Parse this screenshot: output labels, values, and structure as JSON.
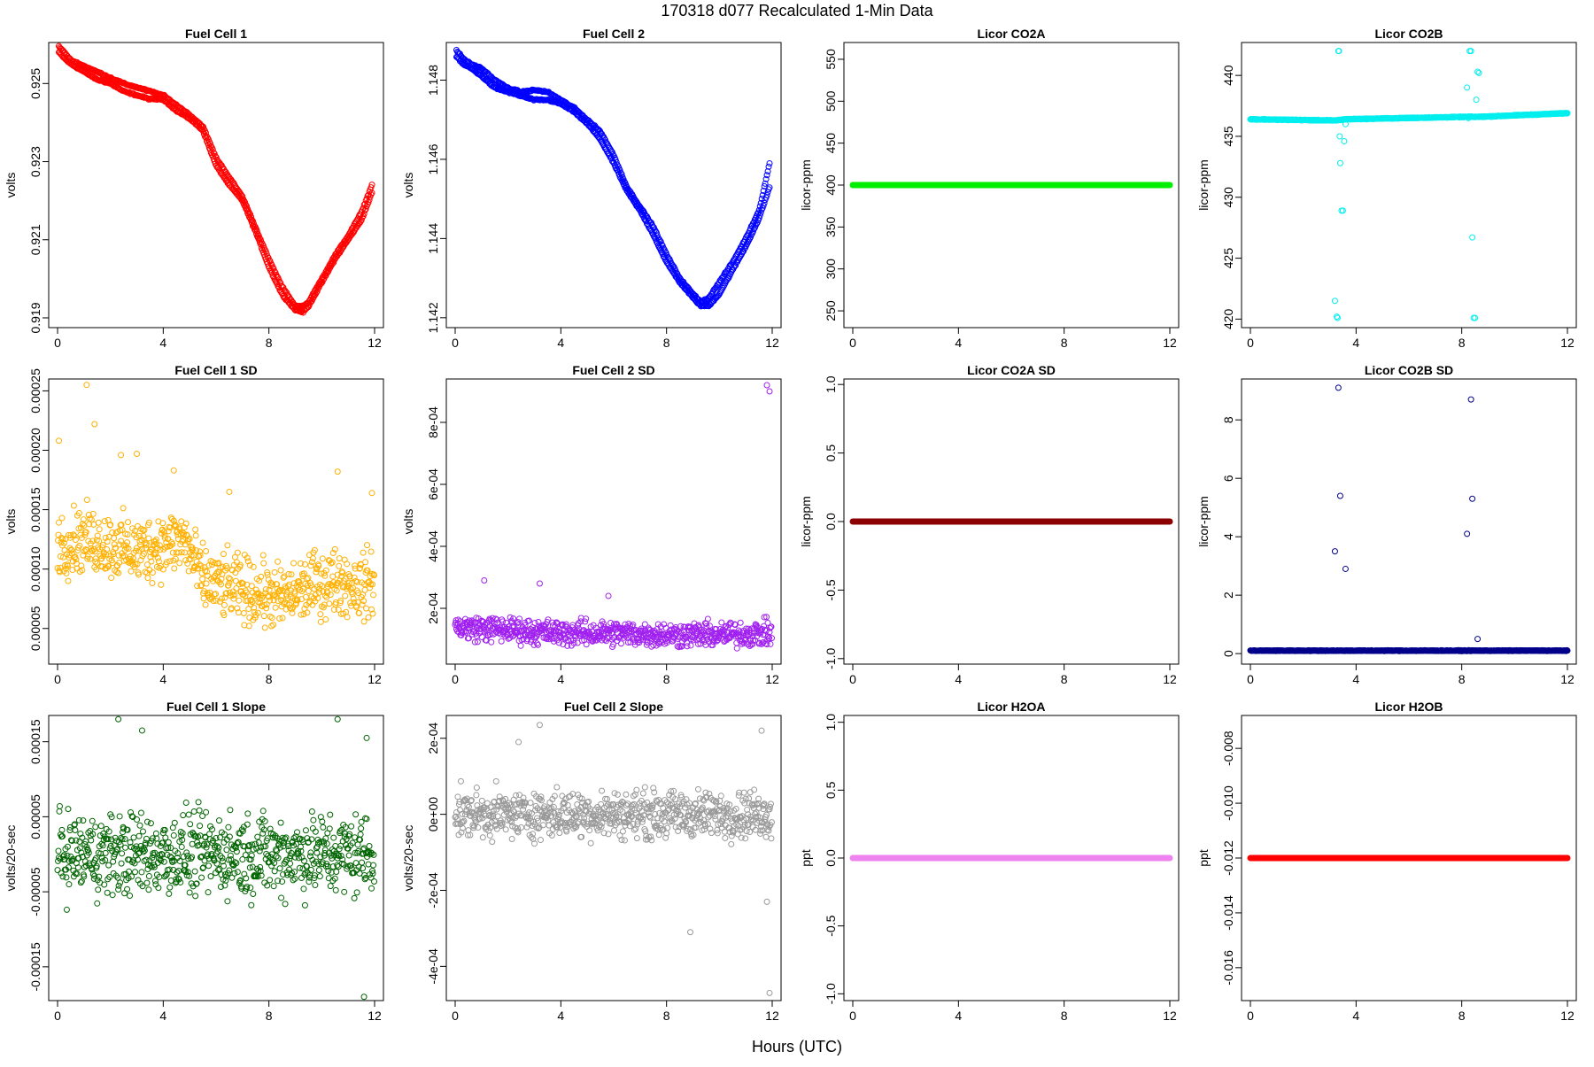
{
  "figure": {
    "title": "170318   d077   Recalculated 1-Min Data",
    "xlabel": "Hours (UTC)"
  },
  "chart_data": [
    {
      "type": "scatter",
      "title": "Fuel Cell 1",
      "ylabel": "volts",
      "xlim": [
        0,
        12
      ],
      "ylim": [
        0.91875,
        0.92605
      ],
      "xticks": [
        0,
        4,
        8,
        12
      ],
      "xtick_labels": [
        "0",
        "4",
        "8",
        "12"
      ],
      "yticks": [
        0.919,
        0.921,
        0.923,
        0.925
      ],
      "ytick_labels": [
        "0.919",
        "0.921",
        "0.923",
        "0.925"
      ],
      "color": "#ff0000",
      "series": [
        {
          "x": [
            0.05,
            0.25,
            0.5,
            1.0,
            1.5,
            2.0,
            2.5,
            3.0,
            3.5,
            4.0,
            4.5,
            5.0,
            5.5,
            6.0,
            6.5,
            7.0,
            7.5,
            8.0,
            8.5,
            9.0,
            9.3,
            9.5,
            10.0,
            10.5,
            11.0,
            11.5,
            11.9
          ],
          "y": [
            0.9258,
            0.92565,
            0.9255,
            0.9253,
            0.9251,
            0.925,
            0.9248,
            0.9247,
            0.9246,
            0.9246,
            0.9243,
            0.9241,
            0.9238,
            0.9229,
            0.9224,
            0.922,
            0.9212,
            0.9203,
            0.9196,
            0.9192,
            0.91915,
            0.9193,
            0.9199,
            0.9205,
            0.921,
            0.9215,
            0.9222
          ]
        },
        {
          "x": [
            0.05,
            0.25,
            0.5,
            1.0,
            1.5,
            2.0,
            2.5,
            3.0,
            3.5,
            4.0,
            4.5,
            5.0,
            5.5,
            6.0,
            6.5,
            7.0,
            7.5,
            8.0,
            8.5,
            9.0,
            9.3,
            9.5,
            10.0,
            10.5,
            11.0,
            11.5,
            11.9
          ],
          "y": [
            0.92595,
            0.9258,
            0.9256,
            0.92545,
            0.9253,
            0.92515,
            0.925,
            0.9249,
            0.9248,
            0.9247,
            0.92445,
            0.9242,
            0.9239,
            0.9231,
            0.9226,
            0.9221,
            0.9213,
            0.9205,
            0.9198,
            0.9193,
            0.9193,
            0.9194,
            0.92,
            0.9206,
            0.9211,
            0.9217,
            0.9224
          ]
        }
      ],
      "marker": "band"
    },
    {
      "type": "scatter",
      "title": "Fuel Cell 2",
      "ylabel": "volts",
      "xlim": [
        0,
        12
      ],
      "ylim": [
        1.14175,
        1.14895
      ],
      "xticks": [
        0,
        4,
        8,
        12
      ],
      "xtick_labels": [
        "0",
        "4",
        "8",
        "12"
      ],
      "yticks": [
        1.142,
        1.144,
        1.146,
        1.148
      ],
      "ytick_labels": [
        "1.142",
        "1.144",
        "1.146",
        "1.148"
      ],
      "color": "#0000ff",
      "series": [
        {
          "x": [
            0.05,
            0.3,
            0.6,
            1.0,
            1.5,
            2.0,
            2.5,
            3.0,
            3.5,
            4.0,
            4.5,
            5.0,
            5.5,
            6.0,
            6.5,
            7.0,
            7.5,
            8.0,
            8.5,
            9.0,
            9.3,
            9.6,
            10.0,
            10.5,
            11.0,
            11.5,
            11.9
          ],
          "y": [
            1.1486,
            1.1484,
            1.1483,
            1.1481,
            1.1478,
            1.1477,
            1.1476,
            1.1475,
            1.1475,
            1.1474,
            1.1472,
            1.1469,
            1.1465,
            1.1459,
            1.1452,
            1.1447,
            1.1441,
            1.1434,
            1.1429,
            1.1425,
            1.1423,
            1.1423,
            1.1426,
            1.1432,
            1.1438,
            1.1445,
            1.1453
          ]
        },
        {
          "x": [
            0.05,
            0.3,
            0.6,
            1.0,
            1.5,
            2.0,
            2.5,
            3.0,
            3.5,
            4.0,
            4.5,
            5.0,
            5.5,
            6.0,
            6.5,
            7.0,
            7.5,
            8.0,
            8.5,
            9.0,
            9.3,
            9.6,
            10.0,
            10.5,
            11.0,
            11.5,
            11.9
          ],
          "y": [
            1.14875,
            1.14855,
            1.1484,
            1.1483,
            1.148,
            1.1478,
            1.1477,
            1.14775,
            1.1477,
            1.1475,
            1.1473,
            1.147,
            1.1467,
            1.1461,
            1.1453,
            1.1448,
            1.1443,
            1.1436,
            1.143,
            1.1426,
            1.1424,
            1.1425,
            1.1429,
            1.1434,
            1.144,
            1.1447,
            1.1459
          ]
        }
      ],
      "marker": "band"
    },
    {
      "type": "scatter",
      "title": "Licor CO2A",
      "ylabel": "licor-ppm",
      "xlim": [
        0,
        12
      ],
      "ylim": [
        230,
        570
      ],
      "xticks": [
        0,
        4,
        8,
        12
      ],
      "xtick_labels": [
        "0",
        "4",
        "8",
        "12"
      ],
      "yticks": [
        250,
        300,
        350,
        400,
        450,
        500,
        550
      ],
      "ytick_labels": [
        "250",
        "300",
        "350",
        "400",
        "450",
        "500",
        "550"
      ],
      "color": "#00ee00",
      "series": [
        {
          "x": [
            0,
            12
          ],
          "y": [
            400,
            400
          ]
        }
      ],
      "marker": "thickline"
    },
    {
      "type": "scatter",
      "title": "Licor CO2B",
      "ylabel": "licor-ppm",
      "xlim": [
        0,
        12
      ],
      "ylim": [
        419.3,
        442.7
      ],
      "xticks": [
        0,
        4,
        8,
        12
      ],
      "xtick_labels": [
        "0",
        "4",
        "8",
        "12"
      ],
      "yticks": [
        420,
        425,
        430,
        435,
        440
      ],
      "ytick_labels": [
        "420",
        "425",
        "430",
        "435",
        "440"
      ],
      "color": "#00eeee",
      "series": [
        {
          "x": [
            0,
            3.2,
            3.6,
            8.2,
            8.7,
            12
          ],
          "y": [
            436.4,
            436.3,
            436.4,
            436.6,
            436.6,
            436.9
          ]
        },
        {
          "x": [
            3.2,
            3.27,
            3.3,
            3.33,
            3.35,
            3.38,
            3.4,
            3.45,
            3.5,
            3.55,
            3.6,
            8.3,
            8.35,
            8.4,
            8.45,
            8.5,
            8.55,
            8.6,
            8.65,
            8.2,
            8.25
          ],
          "y": [
            421.5,
            420.2,
            420.1,
            442.0,
            442.0,
            435.0,
            432.8,
            428.9,
            428.9,
            434.6,
            436.0,
            442.0,
            442.0,
            426.7,
            420.1,
            420.1,
            438.0,
            440.3,
            440.2,
            439.0,
            436.5
          ]
        }
      ],
      "marker": "mixed"
    },
    {
      "type": "scatter",
      "title": "Fuel Cell 1 SD",
      "ylabel": "volts",
      "xlim": [
        0,
        12
      ],
      "ylim": [
        2e-05,
        0.00026
      ],
      "xticks": [
        0,
        4,
        8,
        12
      ],
      "xtick_labels": [
        "0",
        "4",
        "8",
        "12"
      ],
      "yticks": [
        5e-05,
        0.0001,
        0.00015,
        0.0002,
        0.00025
      ],
      "ytick_labels": [
        "0.00005",
        "0.00010",
        "0.00015",
        "0.00020",
        "0.00025"
      ],
      "color": "#ffb000",
      "series": [
        {
          "x": [
            0.0,
            1.0,
            2.0,
            3.0,
            4.0,
            4.8,
            5.5,
            6.5,
            7.5,
            8.5,
            9.5,
            10.5,
            11.5,
            12.0
          ],
          "y": [
            0.00012,
            0.000125,
            0.00012,
            0.000115,
            0.00012,
            0.000125,
            9e-05,
            8.5e-05,
            8e-05,
            7.5e-05,
            8.5e-05,
            9e-05,
            8.5e-05,
            9e-05
          ],
          "spread": 4e-05
        },
        {
          "x": [
            0.05,
            1.1,
            1.4,
            2.4,
            3.0,
            4.4,
            6.5,
            10.6,
            11.9
          ],
          "y": [
            0.000208,
            0.000255,
            0.000222,
            0.000196,
            0.000197,
            0.000183,
            0.000165,
            0.000182,
            0.000164
          ]
        }
      ],
      "marker": "cloud"
    },
    {
      "type": "scatter",
      "title": "Fuel Cell 2 SD",
      "ylabel": "volts",
      "xlim": [
        0,
        12
      ],
      "ylim": [
        2e-05,
        0.00094
      ],
      "xticks": [
        0,
        4,
        8,
        12
      ],
      "xtick_labels": [
        "0",
        "4",
        "8",
        "12"
      ],
      "yticks": [
        0.0002,
        0.0004,
        0.0006,
        0.0008
      ],
      "ytick_labels": [
        "2e-04",
        "4e-04",
        "6e-04",
        "8e-04"
      ],
      "color": "#a020f0",
      "series": [
        {
          "x": [
            0,
            2,
            4,
            6,
            8,
            10,
            12
          ],
          "y": [
            0.00014,
            0.00013,
            0.00012,
            0.00012,
            0.000115,
            0.000115,
            0.00012
          ],
          "spread": 6e-05
        },
        {
          "x": [
            1.1,
            3.2,
            5.8,
            11.8,
            11.9
          ],
          "y": [
            0.00029,
            0.00028,
            0.00024,
            0.00092,
            0.0009
          ]
        }
      ],
      "marker": "cloud"
    },
    {
      "type": "scatter",
      "title": "Licor CO2A SD",
      "ylabel": "licor-ppm",
      "xlim": [
        0,
        12
      ],
      "ylim": [
        -1.04,
        1.04
      ],
      "xticks": [
        0,
        4,
        8,
        12
      ],
      "xtick_labels": [
        "0",
        "4",
        "8",
        "12"
      ],
      "yticks": [
        -1.0,
        -0.5,
        0.0,
        0.5,
        1.0
      ],
      "ytick_labels": [
        "-1.0",
        "-0.5",
        "0.0",
        "0.5",
        "1.0"
      ],
      "color": "#8b0000",
      "series": [
        {
          "x": [
            0,
            12
          ],
          "y": [
            0,
            0
          ]
        }
      ],
      "marker": "thickline"
    },
    {
      "type": "scatter",
      "title": "Licor CO2B SD",
      "ylabel": "licor-ppm",
      "xlim": [
        0,
        12
      ],
      "ylim": [
        -0.36,
        9.4
      ],
      "xticks": [
        0,
        4,
        8,
        12
      ],
      "xtick_labels": [
        "0",
        "4",
        "8",
        "12"
      ],
      "yticks": [
        0,
        2,
        4,
        6,
        8
      ],
      "ytick_labels": [
        "0",
        "2",
        "4",
        "6",
        "8"
      ],
      "color": "#00008b",
      "series": [
        {
          "x": [
            0,
            12
          ],
          "y": [
            0.1,
            0.1
          ]
        },
        {
          "x": [
            3.2,
            3.33,
            3.4,
            3.6,
            8.2,
            8.35,
            8.4,
            8.6
          ],
          "y": [
            3.5,
            9.1,
            5.4,
            2.9,
            4.1,
            8.7,
            5.3,
            0.5
          ]
        }
      ],
      "marker": "mixed"
    },
    {
      "type": "scatter",
      "title": "Fuel Cell 1 Slope",
      "ylabel": "volts/20-sec",
      "xlim": [
        0,
        12
      ],
      "ylim": [
        -0.000195,
        0.000185
      ],
      "xticks": [
        0,
        4,
        8,
        12
      ],
      "xtick_labels": [
        "0",
        "4",
        "8",
        "12"
      ],
      "yticks": [
        -0.00015,
        -5e-05,
        5e-05,
        0.00015
      ],
      "ytick_labels": [
        "-0.00015",
        "-0.00005",
        "0.00005",
        "0.00015"
      ],
      "color": "#006400",
      "series": [
        {
          "x": [
            0,
            3,
            6,
            9,
            12
          ],
          "y": [
            0.0,
            0.0,
            0.0,
            0.0,
            0.0
          ],
          "spread": 8e-05
        },
        {
          "x": [
            2.3,
            3.2,
            10.6,
            11.7,
            11.6
          ],
          "y": [
            0.00018,
            0.000165,
            0.00018,
            0.000155,
            -0.00019
          ]
        }
      ],
      "marker": "cloud"
    },
    {
      "type": "scatter",
      "title": "Fuel Cell 2 Slope",
      "ylabel": "volts/20-sec",
      "xlim": [
        0,
        12
      ],
      "ylim": [
        -0.00049,
        0.00026
      ],
      "xticks": [
        0,
        4,
        8,
        12
      ],
      "xtick_labels": [
        "0",
        "4",
        "8",
        "12"
      ],
      "yticks": [
        -0.0004,
        -0.0002,
        0.0,
        0.0002
      ],
      "ytick_labels": [
        "-4e-04",
        "-2e-04",
        "0e+00",
        "2e-04"
      ],
      "color": "#999999",
      "series": [
        {
          "x": [
            0,
            3,
            6,
            9,
            12
          ],
          "y": [
            0.0,
            0.0,
            0.0,
            0.0,
            0.0
          ],
          "spread": 9e-05
        },
        {
          "x": [
            3.2,
            2.4,
            8.9,
            11.8,
            11.9,
            11.6
          ],
          "y": [
            0.000235,
            0.00019,
            -0.00031,
            -0.00023,
            -0.00047,
            0.00022
          ]
        }
      ],
      "marker": "cloud"
    },
    {
      "type": "scatter",
      "title": "Licor H2OA",
      "ylabel": "ppt",
      "xlim": [
        0,
        12
      ],
      "ylim": [
        -1.05,
        1.05
      ],
      "xticks": [
        0,
        4,
        8,
        12
      ],
      "xtick_labels": [
        "0",
        "4",
        "8",
        "12"
      ],
      "yticks": [
        -1.0,
        -0.5,
        0.0,
        0.5,
        1.0
      ],
      "ytick_labels": [
        "-1.0",
        "-0.5",
        "0.0",
        "0.5",
        "1.0"
      ],
      "color": "#ee82ee",
      "series": [
        {
          "x": [
            0,
            12
          ],
          "y": [
            0,
            0
          ]
        }
      ],
      "marker": "thickline"
    },
    {
      "type": "scatter",
      "title": "Licor H2OB",
      "ylabel": "ppt",
      "xlim": [
        0,
        12
      ],
      "ylim": [
        -0.0172,
        -0.0068
      ],
      "xticks": [
        0,
        4,
        8,
        12
      ],
      "xtick_labels": [
        "0",
        "4",
        "8",
        "12"
      ],
      "yticks": [
        -0.016,
        -0.014,
        -0.012,
        -0.01,
        -0.008
      ],
      "ytick_labels": [
        "-0.016",
        "-0.014",
        "-0.012",
        "-0.010",
        "-0.008"
      ],
      "color": "#ff0000",
      "series": [
        {
          "x": [
            0,
            12
          ],
          "y": [
            -0.012,
            -0.012
          ]
        }
      ],
      "marker": "thickline"
    }
  ]
}
